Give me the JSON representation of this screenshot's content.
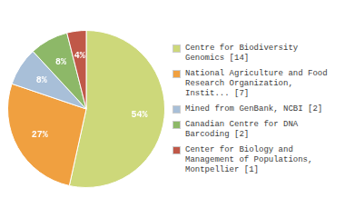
{
  "chart_data": {
    "type": "pie",
    "categories": [
      "Centre for Biodiversity\nGenomics [14]",
      "National Agriculture and Food\nResearch Organization,\nInstit... [7]",
      "Mined from GenBank, NCBI [2]",
      "Canadian Centre for DNA\nBarcoding [2]",
      "Center for Biology and\nManagement of Populations,\nMontpellier [1]"
    ],
    "values": [
      54,
      27,
      8,
      8,
      4
    ],
    "value_labels": [
      "54%",
      "27%",
      "8%",
      "8%",
      "4%"
    ],
    "colors": [
      "#cdd87a",
      "#f0a040",
      "#a8bfd8",
      "#8db868",
      "#c05848"
    ],
    "data_labels": true,
    "legend": "right"
  }
}
